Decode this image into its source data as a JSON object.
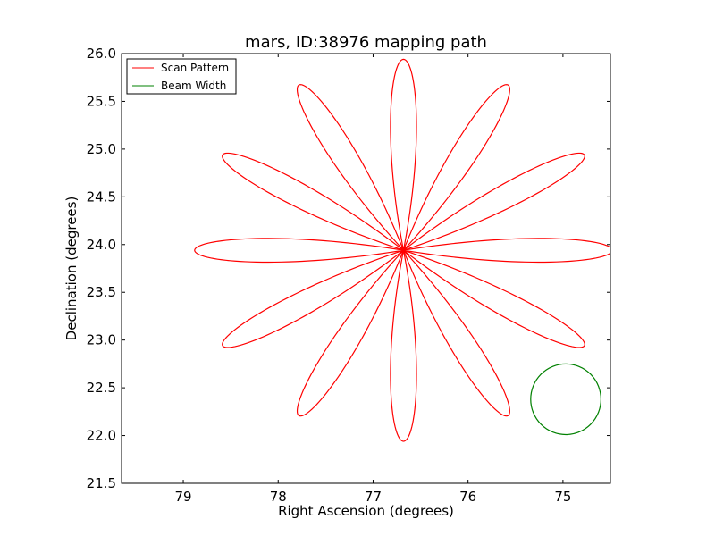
{
  "chart_data": {
    "type": "line",
    "title": "mars, ID:38976 mapping path",
    "xlabel": "Right Ascension (degrees)",
    "ylabel": "Declination (degrees)",
    "xlim": [
      79.65,
      74.5
    ],
    "ylim": [
      21.5,
      26.0
    ],
    "x_inverted": true,
    "xticks": [
      79,
      78,
      77,
      76,
      75
    ],
    "xtick_labels": [
      "79",
      "78",
      "77",
      "76",
      "75"
    ],
    "yticks": [
      21.5,
      22.0,
      22.5,
      23.0,
      23.5,
      24.0,
      24.5,
      25.0,
      25.5,
      26.0
    ],
    "ytick_labels": [
      "21.5",
      "22.0",
      "22.5",
      "23.0",
      "23.5",
      "24.0",
      "24.5",
      "25.0",
      "25.5",
      "26.0"
    ],
    "grid": false,
    "legend_position": "top-left",
    "series": [
      {
        "name": "Scan Pattern",
        "color": "#ff0000",
        "kind": "rose_curve",
        "center": [
          76.68,
          23.94
        ],
        "radius_x": 2.2,
        "radius_y": 2.0,
        "petals": 12,
        "petal_width_deg": 10
      },
      {
        "name": "Beam Width",
        "color": "#008000",
        "kind": "circle",
        "center": [
          74.97,
          22.38
        ],
        "radius": 0.37
      }
    ]
  }
}
